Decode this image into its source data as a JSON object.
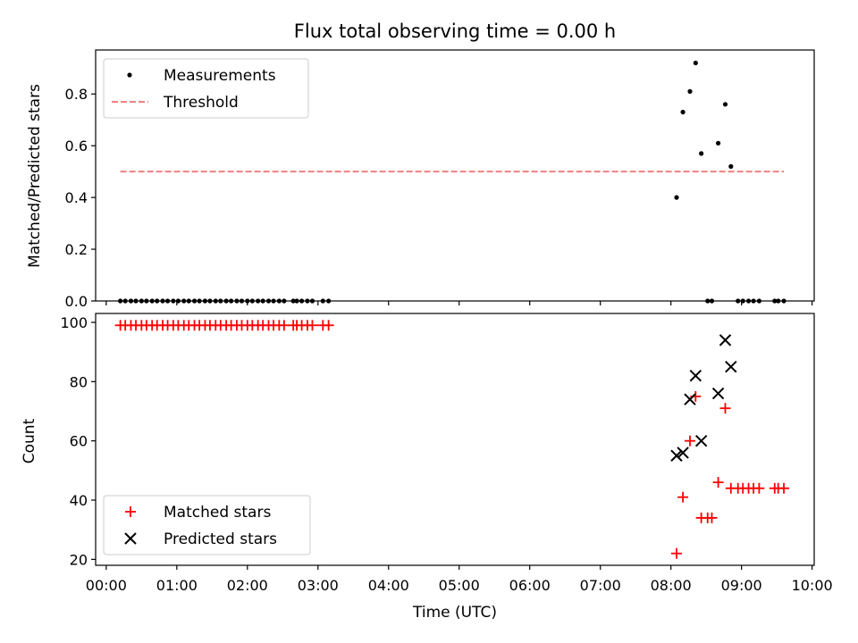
{
  "chart_data": [
    {
      "type": "scatter",
      "title": "Flux total observing time = 0.00 h",
      "xlabel": "",
      "ylabel": "Matched/Predicted stars",
      "ylim": [
        0,
        0.97
      ],
      "xlim": [
        -0.15,
        10.03
      ],
      "xticks": [
        0,
        1,
        2,
        3,
        4,
        5,
        6,
        7,
        8,
        9,
        10
      ],
      "yticks": [
        0.0,
        0.2,
        0.4,
        0.6,
        0.8
      ],
      "ytick_labels": [
        "0.0",
        "0.2",
        "0.4",
        "0.6",
        "0.8"
      ],
      "grid": false,
      "legend_position": "upper left",
      "series": [
        {
          "name": "Measurements",
          "marker": "dot",
          "color": "#000000",
          "x": [
            0.2,
            0.27,
            0.35,
            0.42,
            0.5,
            0.57,
            0.65,
            0.72,
            0.8,
            0.87,
            0.95,
            1.02,
            1.1,
            1.17,
            1.25,
            1.32,
            1.4,
            1.47,
            1.55,
            1.62,
            1.7,
            1.77,
            1.85,
            1.92,
            2.0,
            2.07,
            2.15,
            2.22,
            2.3,
            2.37,
            2.45,
            2.52,
            2.65,
            2.7,
            2.77,
            2.85,
            2.92,
            3.07,
            3.15,
            8.08,
            8.17,
            8.27,
            8.35,
            8.43,
            8.52,
            8.58,
            8.67,
            8.77,
            8.85,
            8.95,
            9.02,
            9.1,
            9.17,
            9.25,
            9.47,
            9.52,
            9.6
          ],
          "y": [
            0,
            0,
            0,
            0,
            0,
            0,
            0,
            0,
            0,
            0,
            0,
            0,
            0,
            0,
            0,
            0,
            0,
            0,
            0,
            0,
            0,
            0,
            0,
            0,
            0,
            0,
            0,
            0,
            0,
            0,
            0,
            0,
            0,
            0,
            0,
            0,
            0,
            0,
            0,
            0.4,
            0.73,
            0.81,
            0.92,
            0.57,
            0.0,
            0.0,
            0.61,
            0.76,
            0.52,
            0.0,
            0.0,
            0.0,
            0.0,
            0.0,
            0.0,
            0.0,
            0.0
          ]
        },
        {
          "name": "Threshold",
          "marker": "dashed-line",
          "color": "#f08080",
          "x": [
            0.2,
            9.6
          ],
          "y": [
            0.5,
            0.5
          ]
        }
      ]
    },
    {
      "type": "scatter",
      "title": "",
      "xlabel": "Time (UTC)",
      "ylabel": "Count",
      "ylim": [
        18,
        103
      ],
      "xlim": [
        -0.15,
        10.03
      ],
      "xticks": [
        0,
        1,
        2,
        3,
        4,
        5,
        6,
        7,
        8,
        9,
        10
      ],
      "xtick_labels": [
        "00:00",
        "01:00",
        "02:00",
        "03:00",
        "04:00",
        "05:00",
        "06:00",
        "07:00",
        "08:00",
        "09:00",
        "10:00"
      ],
      "yticks": [
        20,
        40,
        60,
        80,
        100
      ],
      "ytick_labels": [
        "20",
        "40",
        "60",
        "80",
        "100"
      ],
      "grid": false,
      "legend_position": "lower left",
      "series": [
        {
          "name": "Matched stars",
          "marker": "plus",
          "color": "#ff0000",
          "x": [
            0.2,
            0.27,
            0.35,
            0.42,
            0.5,
            0.57,
            0.65,
            0.72,
            0.8,
            0.87,
            0.95,
            1.02,
            1.1,
            1.17,
            1.25,
            1.32,
            1.4,
            1.47,
            1.55,
            1.62,
            1.7,
            1.77,
            1.85,
            1.92,
            2.0,
            2.07,
            2.15,
            2.22,
            2.3,
            2.37,
            2.45,
            2.52,
            2.65,
            2.7,
            2.77,
            2.85,
            2.92,
            3.07,
            3.15,
            8.08,
            8.17,
            8.27,
            8.35,
            8.43,
            8.52,
            8.58,
            8.67,
            8.77,
            8.85,
            8.95,
            9.02,
            9.1,
            9.17,
            9.25,
            9.47,
            9.52,
            9.6
          ],
          "y": [
            99,
            99,
            99,
            99,
            99,
            99,
            99,
            99,
            99,
            99,
            99,
            99,
            99,
            99,
            99,
            99,
            99,
            99,
            99,
            99,
            99,
            99,
            99,
            99,
            99,
            99,
            99,
            99,
            99,
            99,
            99,
            99,
            99,
            99,
            99,
            99,
            99,
            99,
            99,
            22,
            41,
            60,
            75,
            34,
            34,
            34,
            46,
            71,
            44,
            44,
            44,
            44,
            44,
            44,
            44,
            44,
            44
          ]
        },
        {
          "name": "Predicted stars",
          "marker": "x",
          "color": "#000000",
          "x": [
            8.08,
            8.17,
            8.27,
            8.35,
            8.43,
            8.67,
            8.77,
            8.85
          ],
          "y": [
            55,
            56,
            74,
            82,
            60,
            76,
            94,
            85
          ]
        }
      ]
    }
  ]
}
